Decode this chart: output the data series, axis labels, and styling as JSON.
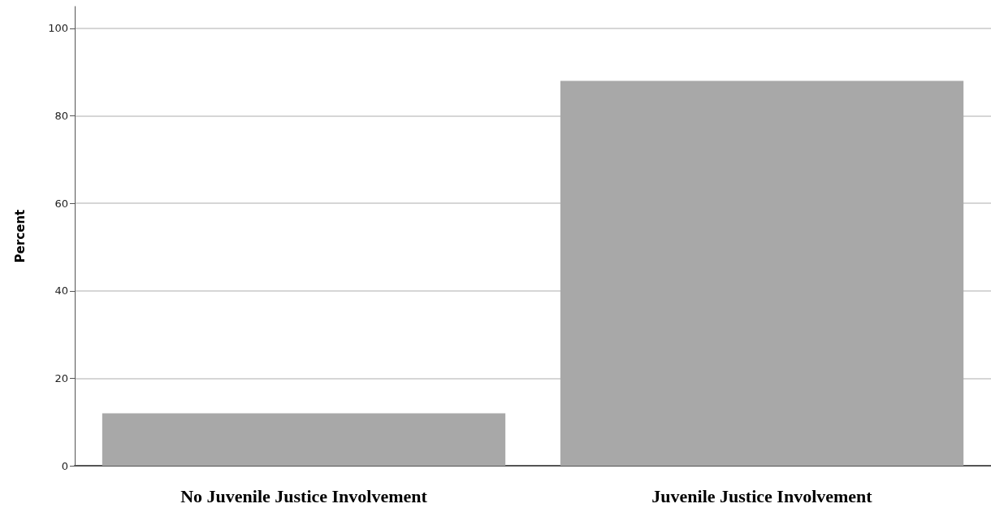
{
  "chart_data": {
    "type": "bar",
    "ylabel": "Percent",
    "categories": [
      "No Juvenile Justice Involvement",
      "Juvenile Justice Involvement"
    ],
    "values": [
      12,
      88
    ],
    "color": "#a8a8a8",
    "ylim": [
      0,
      105
    ],
    "yticks": [
      0,
      20,
      40,
      60,
      80,
      100
    ],
    "grid": "y"
  }
}
